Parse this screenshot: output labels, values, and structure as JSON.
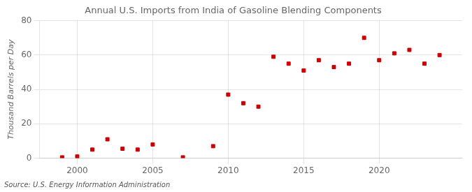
{
  "chart_data": {
    "type": "scatter",
    "title": "Annual U.S. Imports from India of Gasoline Blending Components",
    "ylabel": "Thousand Barrels per Day",
    "source": "Source: U.S. Energy Information Administration",
    "x": [
      1999,
      2000,
      2001,
      2002,
      2003,
      2004,
      2005,
      2007,
      2009,
      2010,
      2011,
      2012,
      2013,
      2014,
      2015,
      2016,
      2017,
      2018,
      2019,
      2020,
      2021,
      2022,
      2023,
      2024
    ],
    "values": [
      0.5,
      1.0,
      5.0,
      11.0,
      5.5,
      5.0,
      8.0,
      0.5,
      7.0,
      37.0,
      32.0,
      30.0,
      59.0,
      55.0,
      51.0,
      57.0,
      53.0,
      55.0,
      70.0,
      57.0,
      61.0,
      63.0,
      55.0,
      60.0
    ],
    "color": "#cc0000",
    "marker": "square",
    "xlim": [
      1997.5,
      2025.5
    ],
    "ylim": [
      0,
      80
    ],
    "xticks": [
      2000,
      2005,
      2010,
      2015,
      2020
    ],
    "yticks": [
      0,
      20,
      40,
      60,
      80
    ],
    "grid": true
  }
}
